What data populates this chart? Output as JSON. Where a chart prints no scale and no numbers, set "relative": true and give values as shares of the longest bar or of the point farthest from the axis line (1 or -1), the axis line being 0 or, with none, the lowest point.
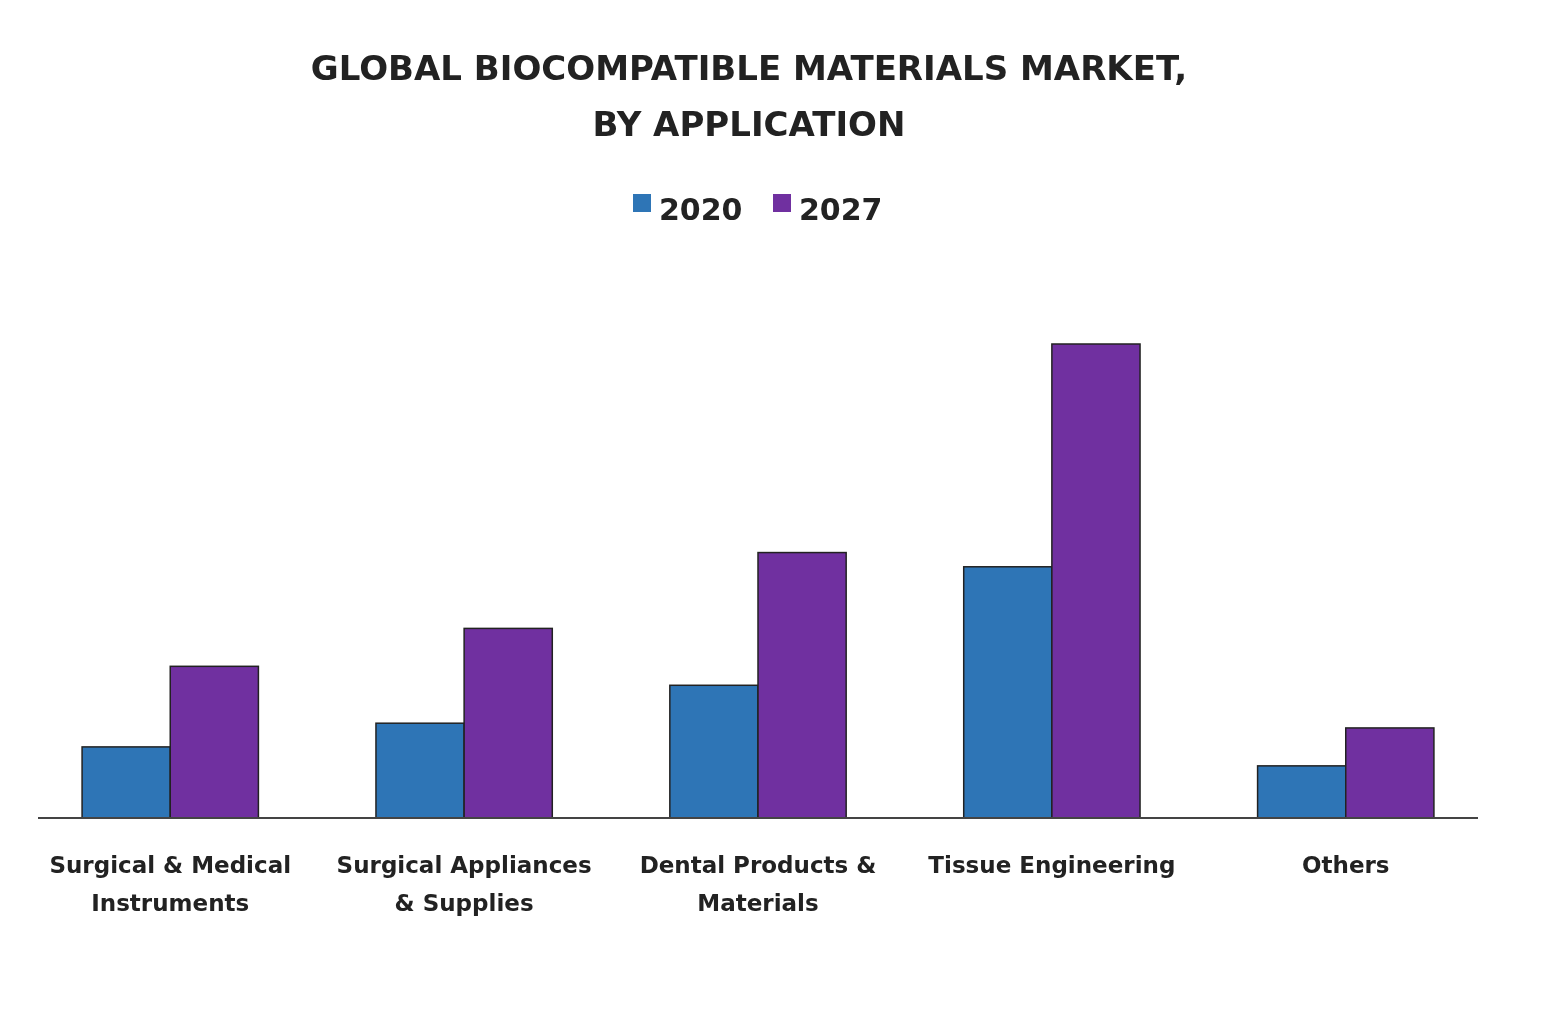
{
  "chart_data": {
    "type": "bar",
    "title": "GLOBAL BIOCOMPATIBLE MATERIALS MARKET, BY APPLICATION",
    "relative": true,
    "legend": "top",
    "grid": false,
    "categories": [
      "Surgical & Medical Instruments",
      "Surgical Appliances & Supplies",
      "Dental Products & Materials",
      "Tissue Engineering",
      "Others"
    ],
    "series": [
      {
        "name": "2020",
        "color": "#2e75b6",
        "values": [
          0.15,
          0.2,
          0.28,
          0.53,
          0.11
        ]
      },
      {
        "name": "2027",
        "color": "#7030a0",
        "values": [
          0.32,
          0.4,
          0.56,
          1,
          0.19
        ]
      }
    ]
  }
}
